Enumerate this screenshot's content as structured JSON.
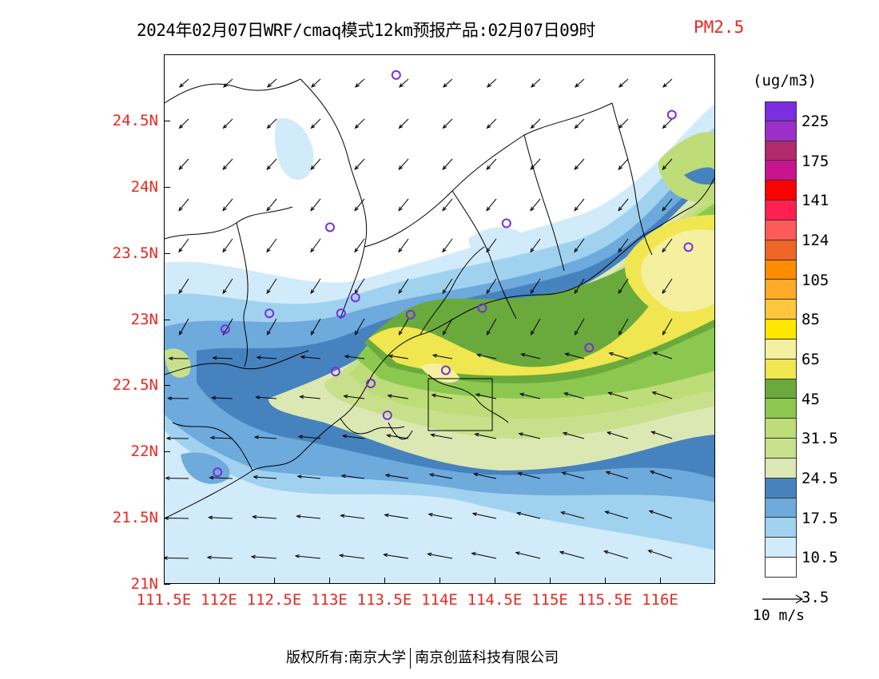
{
  "title": {
    "main": "2024年02月07日WRF/cmaq模式12km预报产品:02月07日09时",
    "variable": "PM2.5"
  },
  "axes": {
    "lat_labels": [
      "24.5N",
      "24N",
      "23.5N",
      "23N",
      "22.5N",
      "22N",
      "21.5N",
      "21N"
    ],
    "lat_values": [
      24.5,
      24.0,
      23.5,
      23.0,
      22.5,
      22.0,
      21.5,
      21.0
    ],
    "lon_labels": [
      "111.5E",
      "112E",
      "112.5E",
      "113E",
      "113.5E",
      "114E",
      "114.5E",
      "115E",
      "115.5E",
      "116E"
    ],
    "lon_values": [
      111.5,
      112.0,
      112.5,
      113.0,
      113.5,
      114.0,
      114.5,
      115.0,
      115.5,
      116.0
    ],
    "lat_range": [
      21.0,
      25.0
    ],
    "lon_range": [
      111.5,
      116.5
    ]
  },
  "colorbar": {
    "units": "(ug/m3)",
    "labels": [
      "225",
      "175",
      "141",
      "124",
      "105",
      "85",
      "65",
      "45",
      "31.5",
      "24.5",
      "17.5",
      "10.5",
      "3.5"
    ],
    "colors": [
      "#7a2ee0",
      "#9b30c8",
      "#b22a6a",
      "#c8148c",
      "#ff0000",
      "#ff2050",
      "#ff5a5a",
      "#f06428",
      "#ff8c00",
      "#ffaa28",
      "#ffc83c",
      "#ffe600",
      "#f5f0a0",
      "#f0e650",
      "#6aaa3c",
      "#8cc850",
      "#bedc78",
      "#c8e08c",
      "#dce8b4",
      "#4682be",
      "#6eaadc",
      "#a0d2f0",
      "#d2ebfa",
      "#ffffff"
    ]
  },
  "wind": {
    "reference_label": "10 m/s",
    "reference_speed": 10
  },
  "stations": [
    {
      "lon": 113.6,
      "lat": 24.85
    },
    {
      "lon": 116.1,
      "lat": 24.55
    },
    {
      "lon": 113.0,
      "lat": 23.7
    },
    {
      "lon": 114.6,
      "lat": 23.73
    },
    {
      "lon": 116.25,
      "lat": 23.55
    },
    {
      "lon": 113.23,
      "lat": 23.17
    },
    {
      "lon": 112.45,
      "lat": 23.05
    },
    {
      "lon": 113.1,
      "lat": 23.05
    },
    {
      "lon": 113.73,
      "lat": 23.04
    },
    {
      "lon": 114.38,
      "lat": 23.09
    },
    {
      "lon": 112.05,
      "lat": 22.93
    },
    {
      "lon": 115.35,
      "lat": 22.79
    },
    {
      "lon": 113.05,
      "lat": 22.61
    },
    {
      "lon": 114.05,
      "lat": 22.62
    },
    {
      "lon": 113.37,
      "lat": 22.52
    },
    {
      "lon": 113.52,
      "lat": 22.28
    },
    {
      "lon": 111.98,
      "lat": 21.85
    }
  ],
  "footer": {
    "copyright": "版权所有:南京大学",
    "company": "南京创蓝科技有限公司"
  }
}
